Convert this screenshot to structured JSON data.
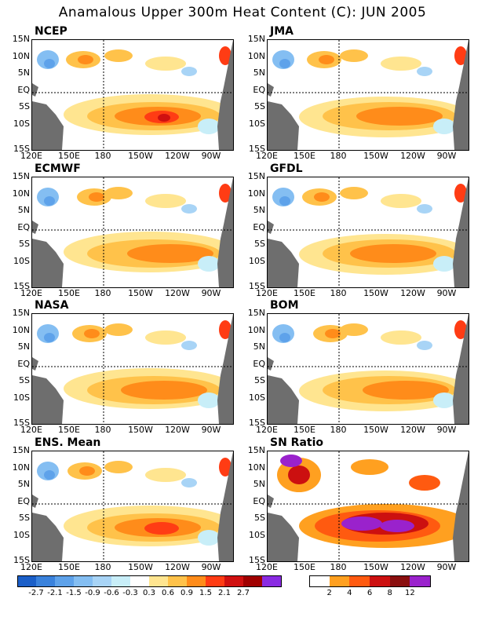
{
  "title": "Anamalous Upper 300m Heat Content (C): JUN 2005",
  "lat_labels": [
    "15N",
    "10N",
    "5N",
    "EQ",
    "5S",
    "10S",
    "15S"
  ],
  "lon_labels": [
    "120E",
    "150E",
    "180",
    "150W",
    "120W",
    "90W"
  ],
  "panels": [
    {
      "name": "NCEP",
      "palette": "anomaly"
    },
    {
      "name": "JMA",
      "palette": "anomaly"
    },
    {
      "name": "ECMWF",
      "palette": "anomaly"
    },
    {
      "name": "GFDL",
      "palette": "anomaly"
    },
    {
      "name": "NASA",
      "palette": "anomaly"
    },
    {
      "name": "BOM",
      "palette": "anomaly"
    },
    {
      "name": "ENS. Mean",
      "palette": "anomaly"
    },
    {
      "name": "SN Ratio",
      "palette": "snr"
    }
  ],
  "colorbar_anomaly": {
    "labels": [
      "-2.7",
      "-2.1",
      "-1.5",
      "-0.9",
      "-0.6",
      "-0.3",
      "0.3",
      "0.6",
      "0.9",
      "1.5",
      "2.1",
      "2.7"
    ],
    "colors": [
      "#1b5fc8",
      "#3a82dc",
      "#5ea2ea",
      "#84bef2",
      "#a8d4f6",
      "#c8eef8",
      "#ffffff",
      "#ffe590",
      "#ffc24a",
      "#ff8c1a",
      "#ff3c14",
      "#d01010",
      "#a00000",
      "#8a2be2"
    ]
  },
  "colorbar_snr": {
    "labels": [
      "2",
      "4",
      "6",
      "8",
      "12"
    ],
    "colors": [
      "#ffffff",
      "#ffa020",
      "#ff5a10",
      "#cc1010",
      "#8a0f0f",
      "#9a22cc"
    ]
  },
  "colors": {
    "land": "#6e6e6e",
    "frame": "#000000"
  }
}
